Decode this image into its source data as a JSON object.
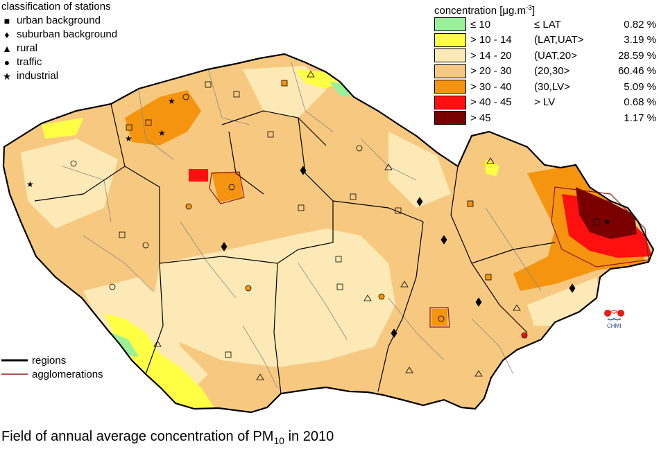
{
  "stations_legend": {
    "title": "classification of stations",
    "items": [
      {
        "symbol": "square",
        "label": "urban background"
      },
      {
        "symbol": "diamond",
        "label": "suburban background"
      },
      {
        "symbol": "triangle",
        "label": "rural"
      },
      {
        "symbol": "circle",
        "label": "traffic"
      },
      {
        "symbol": "star",
        "label": "industrial"
      }
    ]
  },
  "concentration_legend": {
    "title_main": "concentration [μg.m",
    "title_sup": "-3",
    "title_end": "]",
    "classes": [
      {
        "range": "≤ 10",
        "class_label": "≤ LAT",
        "percent": "0.82 %",
        "color": "#99f099"
      },
      {
        "range": "> 10 - 14",
        "class_label": "(LAT,UAT>",
        "percent": "3.19 %",
        "color": "#ffff44"
      },
      {
        "range": "> 14 - 20",
        "class_label": "(UAT,20>",
        "percent": "28.59 %",
        "color": "#fde9b5"
      },
      {
        "range": "> 20 - 30",
        "class_label": "(20,30>",
        "percent": "60.46 %",
        "color": "#f7c980"
      },
      {
        "range": "> 30 - 40",
        "class_label": "(30,LV>",
        "percent": "5.09 %",
        "color": "#f5940f"
      },
      {
        "range": "> 40 - 45",
        "class_label": "> LV",
        "percent": "0.68 %",
        "color": "#ff1010"
      },
      {
        "range": "> 45",
        "class_label": "",
        "percent": "1.17 %",
        "color": "#7a0000"
      }
    ]
  },
  "lines_legend": {
    "regions": "regions",
    "agglomerations": "agglomerations"
  },
  "caption": {
    "prefix": "Field of annual average concentration of PM",
    "subscript": "10",
    "suffix": " in 2010"
  },
  "logo_text": "CHMI"
}
